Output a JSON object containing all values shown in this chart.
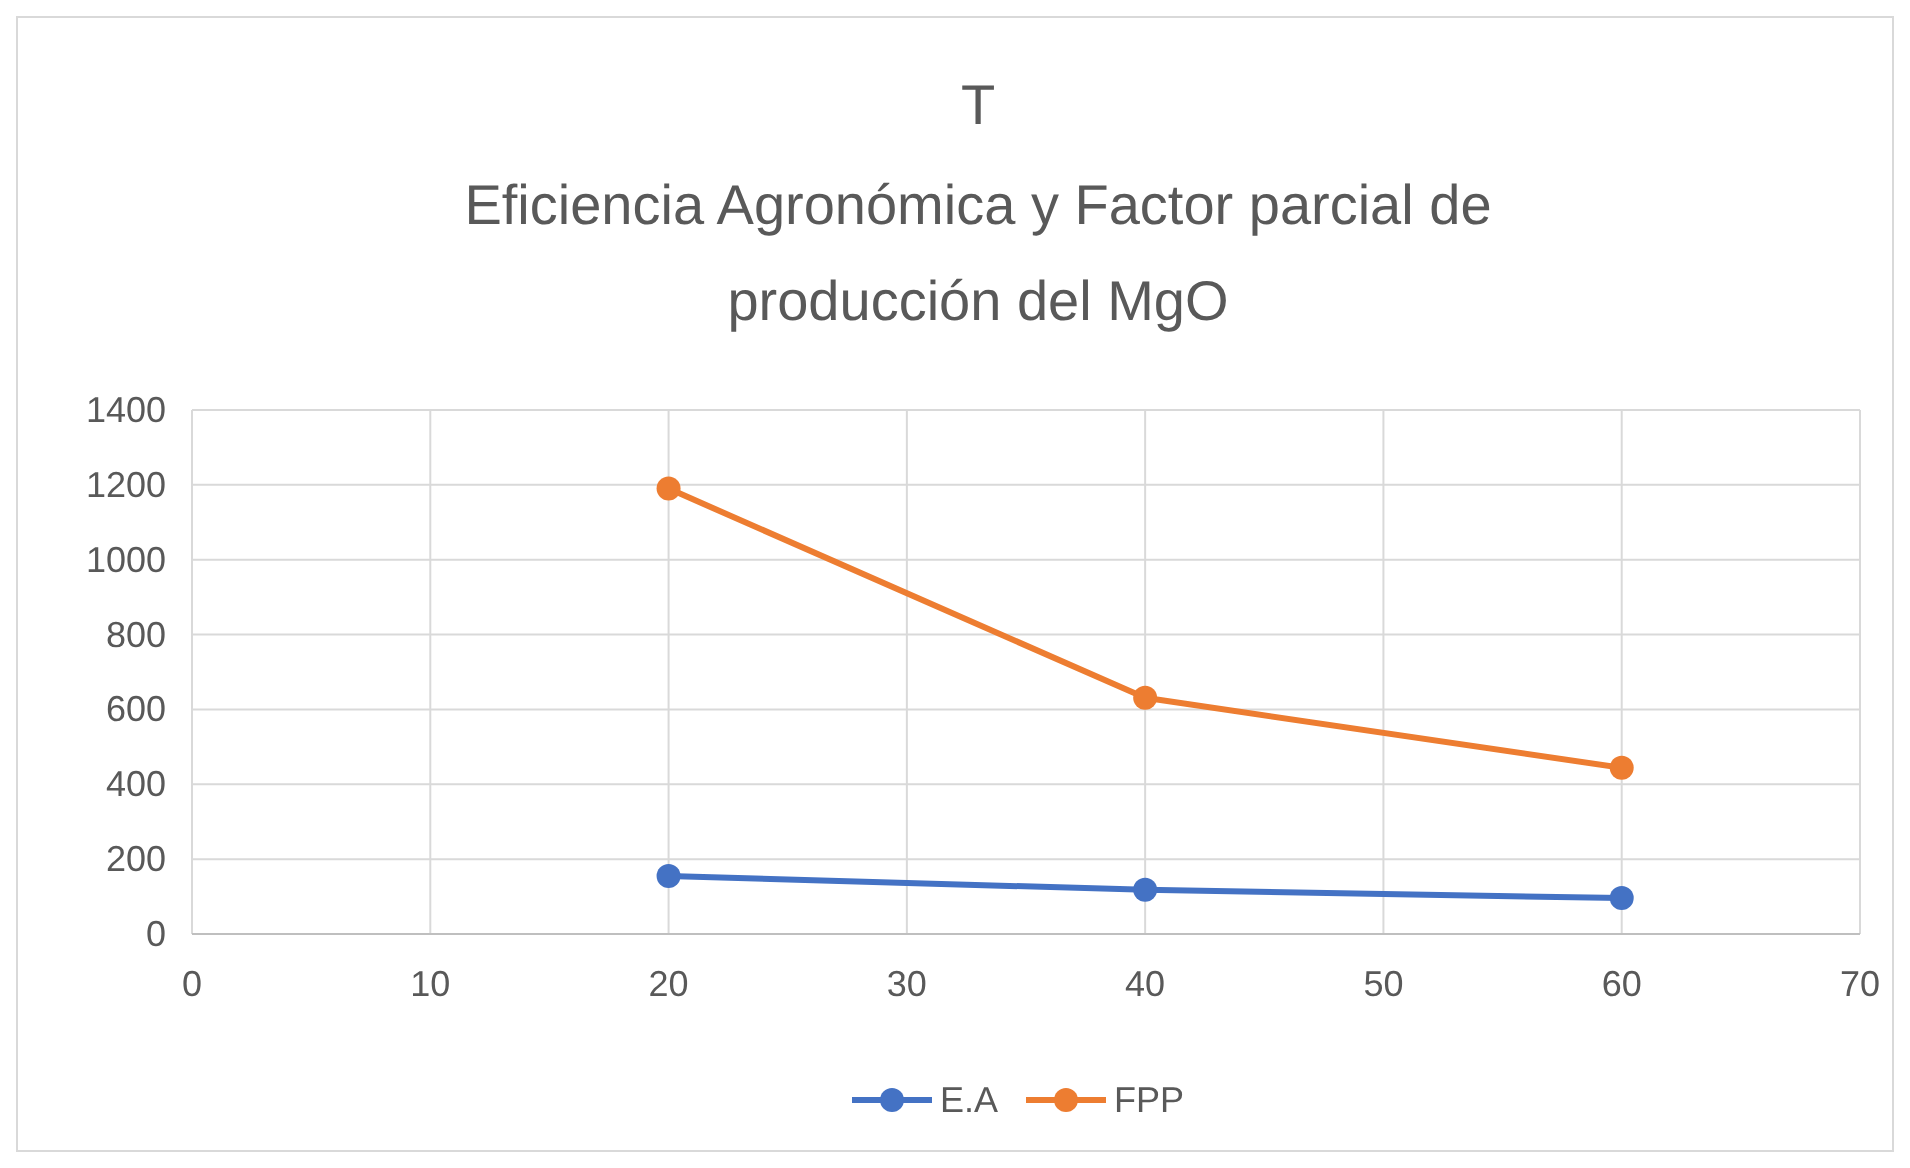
{
  "chart_data": {
    "type": "line",
    "title": "T",
    "subtitle": "Eficiencia Agronómica y Factor parcial de producción del MgO",
    "x": [
      20,
      40,
      60
    ],
    "series": [
      {
        "name": "E.A",
        "color": "#4472c4",
        "values": [
          155,
          118,
          96
        ]
      },
      {
        "name": "FPP",
        "color": "#ed7d31",
        "values": [
          1190,
          631,
          444
        ]
      }
    ],
    "xlim": [
      0,
      70
    ],
    "xticks": [
      0,
      10,
      20,
      30,
      40,
      50,
      60,
      70
    ],
    "ylim": [
      0,
      1400
    ],
    "yticks": [
      0,
      200,
      400,
      600,
      800,
      1000,
      1200,
      1400
    ],
    "grid": true,
    "legend": "bottom",
    "marker": "circle",
    "line_style": "solid"
  }
}
